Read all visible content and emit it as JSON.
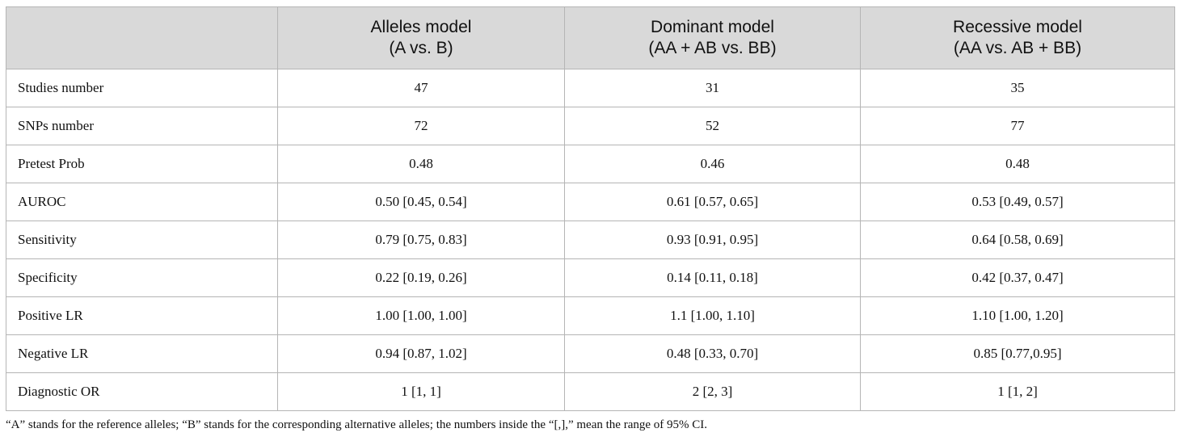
{
  "table": {
    "headers": [
      {
        "line1": "",
        "line2": ""
      },
      {
        "line1": "Alleles model",
        "line2": "(A vs. B)"
      },
      {
        "line1": "Dominant model",
        "line2": "(AA + AB vs. BB)"
      },
      {
        "line1": "Recessive model",
        "line2": "(AA vs. AB + BB)"
      }
    ],
    "rows": [
      {
        "label": "Studies number",
        "values": [
          "47",
          "31",
          "35"
        ]
      },
      {
        "label": "SNPs number",
        "values": [
          "72",
          "52",
          "77"
        ]
      },
      {
        "label": "Pretest Prob",
        "values": [
          "0.48",
          "0.46",
          "0.48"
        ]
      },
      {
        "label": "AUROC",
        "values": [
          "0.50 [0.45, 0.54]",
          "0.61 [0.57, 0.65]",
          "0.53 [0.49, 0.57]"
        ]
      },
      {
        "label": "Sensitivity",
        "values": [
          "0.79 [0.75, 0.83]",
          "0.93 [0.91, 0.95]",
          "0.64 [0.58, 0.69]"
        ]
      },
      {
        "label": "Specificity",
        "values": [
          "0.22 [0.19, 0.26]",
          "0.14 [0.11, 0.18]",
          "0.42 [0.37, 0.47]"
        ]
      },
      {
        "label": "Positive LR",
        "values": [
          "1.00 [1.00, 1.00]",
          "1.1 [1.00, 1.10]",
          "1.10 [1.00, 1.20]"
        ]
      },
      {
        "label": "Negative LR",
        "values": [
          "0.94 [0.87, 1.02]",
          "0.48 [0.33, 0.70]",
          "0.85 [0.77,0.95]"
        ]
      },
      {
        "label": "Diagnostic OR",
        "values": [
          "1 [1, 1]",
          "2 [2, 3]",
          "1 [1, 2]"
        ]
      }
    ]
  },
  "footnote": "“A” stands for the reference alleles; “B” stands for the corresponding alternative alleles; the numbers inside the “[,],” mean the range of 95% CI."
}
